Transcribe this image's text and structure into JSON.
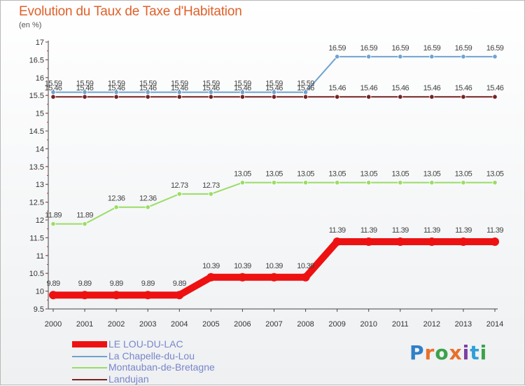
{
  "header": {
    "title": "Evolution du Taux de Taxe d'Habitation",
    "subtitle": "(en %)"
  },
  "logo": {
    "text": "Proxiti",
    "letters": [
      "P",
      "r",
      "o",
      "x",
      "i",
      "t",
      "i"
    ],
    "colors": [
      "#2f7fc8",
      "#e8702a",
      "#3aa24a",
      "#e8702a",
      "#7b3fa0",
      "#2f9fd8",
      "#3aa24a"
    ]
  },
  "chart_data": {
    "type": "line",
    "title": "Evolution du Taux de Taxe d'Habitation",
    "ylabel": "(en %)",
    "xlabel": "",
    "ylim": [
      9.5,
      17
    ],
    "yticks": [
      9.5,
      10,
      10.5,
      11,
      11.5,
      12,
      12.5,
      13,
      13.5,
      14,
      14.5,
      15,
      15.5,
      16,
      16.5,
      17
    ],
    "categories": [
      "2000",
      "2001",
      "2002",
      "2003",
      "2004",
      "2005",
      "2006",
      "2007",
      "2008",
      "2009",
      "2010",
      "2011",
      "2012",
      "2013",
      "2014"
    ],
    "series": [
      {
        "name": "LE LOU-DU-LAC",
        "color": "#ee1111",
        "width": 10,
        "values": [
          9.89,
          9.89,
          9.89,
          9.89,
          9.89,
          10.39,
          10.39,
          10.39,
          10.39,
          11.39,
          11.39,
          11.39,
          11.39,
          11.39,
          11.39
        ],
        "labels": [
          "9.89",
          "9.89",
          "9.89",
          "9.89",
          "9.89",
          "10.39",
          "10.39",
          "10.39",
          "10.39",
          "11.39",
          "11.39",
          "11.39",
          "11.39",
          "11.39",
          "11.39"
        ]
      },
      {
        "name": "La Chapelle-du-Lou",
        "color": "#6fa3d0",
        "width": 2,
        "values": [
          15.59,
          15.59,
          15.59,
          15.59,
          15.59,
          15.59,
          15.59,
          15.59,
          15.59,
          16.59,
          16.59,
          16.59,
          16.59,
          16.59,
          16.59
        ],
        "labels": [
          "15.59",
          "15.59",
          "15.59",
          "15.59",
          "15.59",
          "15.59",
          "15.59",
          "15.59",
          "15.59",
          "16.59",
          "16.59",
          "16.59",
          "16.59",
          "16.59",
          "16.59"
        ]
      },
      {
        "name": "Montauban-de-Bretagne",
        "color": "#99dd66",
        "width": 2,
        "values": [
          11.89,
          11.89,
          12.36,
          12.36,
          12.73,
          12.73,
          13.05,
          13.05,
          13.05,
          13.05,
          13.05,
          13.05,
          13.05,
          13.05,
          13.05
        ],
        "labels": [
          "11.89",
          "11.89",
          "12.36",
          "12.36",
          "12.73",
          "12.73",
          "13.05",
          "13.05",
          "13.05",
          "13.05",
          "13.05",
          "13.05",
          "13.05",
          "13.05",
          "13.05"
        ]
      },
      {
        "name": "Landujan",
        "color": "#772222",
        "width": 2,
        "values": [
          15.46,
          15.46,
          15.46,
          15.46,
          15.46,
          15.46,
          15.46,
          15.46,
          15.46,
          15.46,
          15.46,
          15.46,
          15.46,
          15.46,
          15.46
        ],
        "labels": [
          "15.46",
          "15.46",
          "15.46",
          "15.46",
          "15.46",
          "15.46",
          "15.46",
          "15.46",
          "15.46",
          "15.46",
          "15.46",
          "15.46",
          "15.46",
          "15.46",
          "15.46"
        ]
      }
    ],
    "legend": [
      "LE LOU-DU-LAC",
      "La Chapelle-du-Lou",
      "Montauban-de-Bretagne",
      "Landujan"
    ],
    "legend_position": "bottom-left",
    "grid": false
  }
}
